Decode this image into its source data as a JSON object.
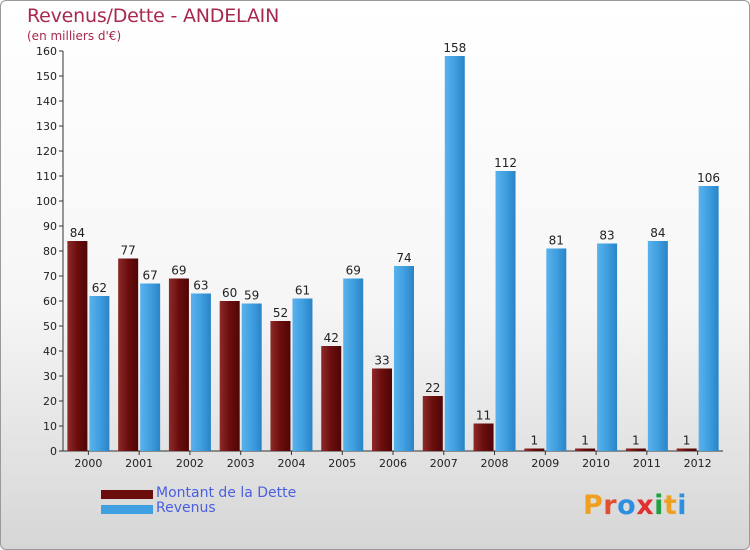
{
  "title": "Revenus/Dette - ANDELAIN",
  "subtitle": "(en milliers d'€)",
  "colors": {
    "dette": "#6b0d0d",
    "revenus": "#3f9fe0",
    "title": "#a8284e",
    "legend_text": "#4a5fe0"
  },
  "legend": [
    {
      "label": "Montant de la Dette",
      "color": "#6b0d0d"
    },
    {
      "label": "Revenus",
      "color": "#3f9fe0"
    }
  ],
  "logo": {
    "letters": [
      {
        "ch": "P",
        "color": "#f0a020"
      },
      {
        "ch": "r",
        "color": "#e05030"
      },
      {
        "ch": "o",
        "color": "#2e8fe0"
      },
      {
        "ch": "x",
        "color": "#e03030"
      },
      {
        "ch": "i",
        "color": "#20a040"
      },
      {
        "ch": "t",
        "color": "#f0a020"
      },
      {
        "ch": "i",
        "color": "#2e8fe0"
      }
    ]
  },
  "chart_data": {
    "type": "bar",
    "title": "Revenus/Dette - ANDELAIN",
    "subtitle": "(en milliers d'€)",
    "xlabel": "",
    "ylabel": "",
    "categories": [
      "2000",
      "2001",
      "2002",
      "2003",
      "2004",
      "2005",
      "2006",
      "2007",
      "2008",
      "2009",
      "2010",
      "2011",
      "2012"
    ],
    "series": [
      {
        "name": "Montant de la Dette",
        "values": [
          84,
          77,
          69,
          60,
          52,
          42,
          33,
          22,
          11,
          1,
          1,
          1,
          1
        ]
      },
      {
        "name": "Revenus",
        "values": [
          62,
          67,
          63,
          59,
          61,
          69,
          74,
          158,
          112,
          81,
          83,
          84,
          106
        ]
      }
    ],
    "ylim": [
      0,
      160
    ],
    "yticks": [
      0,
      10,
      20,
      30,
      40,
      50,
      60,
      70,
      80,
      90,
      100,
      110,
      120,
      130,
      140,
      150,
      160
    ],
    "grid": false,
    "legend_position": "bottom-left"
  }
}
